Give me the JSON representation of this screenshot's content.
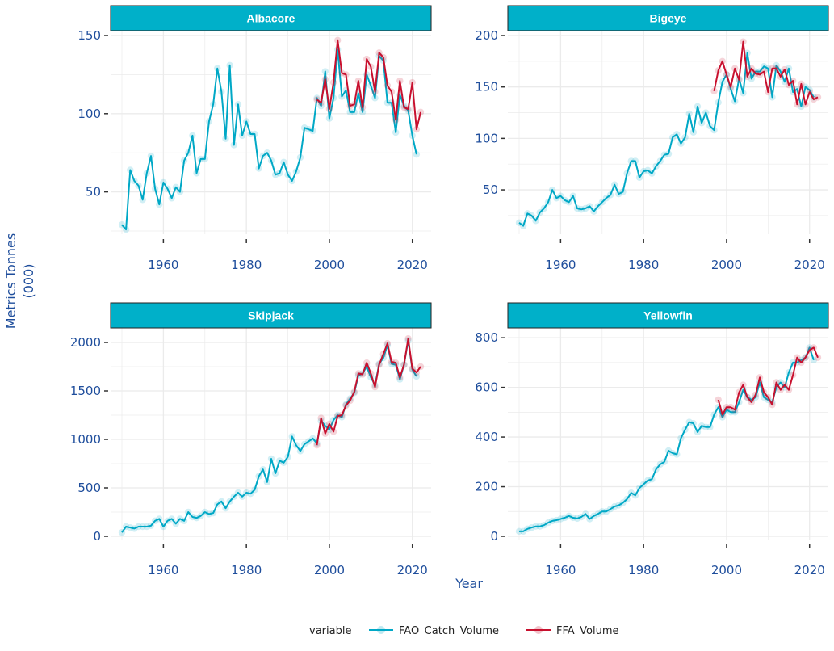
{
  "colors": {
    "strip": "#00b0c9",
    "fao": "#00a8c6",
    "ffa": "#c8102e",
    "tick": "#1f4e9c",
    "grid": "#ebebeb"
  },
  "axis_titles": {
    "y_line1": "Metrics Tonnes",
    "y_line2": "(000)",
    "x": "Year"
  },
  "legend": {
    "title": "variable",
    "items": [
      "FAO_Catch_Volume",
      "FFA_Volume"
    ]
  },
  "chart_data": [
    {
      "type": "line",
      "title": "Albacore",
      "xlabel": "Year",
      "ylabel": "Metrics Tonnes (000)",
      "xlim": [
        1950,
        2022
      ],
      "ylim": [
        25,
        150
      ],
      "x_ticks": [
        1960,
        1980,
        2000,
        2020
      ],
      "y_ticks": [
        50,
        100,
        150
      ],
      "series": [
        {
          "name": "FAO_Catch_Volume",
          "x": [
            1950,
            1951,
            1952,
            1953,
            1954,
            1955,
            1956,
            1957,
            1958,
            1959,
            1960,
            1961,
            1962,
            1963,
            1964,
            1965,
            1966,
            1967,
            1968,
            1969,
            1970,
            1971,
            1972,
            1973,
            1974,
            1975,
            1976,
            1977,
            1978,
            1979,
            1980,
            1981,
            1982,
            1983,
            1984,
            1985,
            1986,
            1987,
            1988,
            1989,
            1990,
            1991,
            1992,
            1993,
            1994,
            1995,
            1996,
            1997,
            1998,
            1999,
            2000,
            2001,
            2002,
            2003,
            2004,
            2005,
            2006,
            2007,
            2008,
            2009,
            2010,
            2011,
            2012,
            2013,
            2014,
            2015,
            2016,
            2017,
            2018,
            2019,
            2020,
            2021
          ],
          "values": [
            29,
            26,
            64,
            57,
            54,
            45,
            62,
            73,
            52,
            42,
            56,
            52,
            46,
            53,
            50,
            70,
            75,
            86,
            62,
            71,
            71,
            95,
            106,
            129,
            114,
            84,
            131,
            80,
            106,
            86,
            95,
            87,
            87,
            65,
            73,
            75,
            70,
            61,
            62,
            69,
            61,
            57,
            63,
            72,
            91,
            90,
            89,
            110,
            105,
            127,
            97,
            110,
            141,
            111,
            115,
            101,
            101,
            113,
            101,
            125,
            118,
            110,
            137,
            134,
            107,
            107,
            88,
            112,
            105,
            102,
            86,
            74
          ]
        },
        {
          "name": "FFA_Volume",
          "x": [
            1997,
            1998,
            1999,
            2000,
            2001,
            2002,
            2003,
            2004,
            2005,
            2006,
            2007,
            2008,
            2009,
            2010,
            2011,
            2012,
            2013,
            2014,
            2015,
            2016,
            2017,
            2018,
            2019,
            2020,
            2021,
            2022
          ],
          "values": [
            109,
            107,
            122,
            103,
            120,
            147,
            126,
            125,
            105,
            106,
            121,
            104,
            135,
            130,
            114,
            139,
            136,
            118,
            114,
            96,
            121,
            104,
            103,
            120,
            90,
            101
          ]
        }
      ]
    },
    {
      "type": "line",
      "title": "Bigeye",
      "xlabel": "Year",
      "ylabel": "Metrics Tonnes (000)",
      "xlim": [
        1950,
        2022
      ],
      "ylim": [
        10,
        200
      ],
      "x_ticks": [
        1960,
        1980,
        2000,
        2020
      ],
      "y_ticks": [
        50,
        100,
        150,
        200
      ],
      "series": [
        {
          "name": "FAO_Catch_Volume",
          "x": [
            1950,
            1951,
            1952,
            1953,
            1954,
            1955,
            1956,
            1957,
            1958,
            1959,
            1960,
            1961,
            1962,
            1963,
            1964,
            1965,
            1966,
            1967,
            1968,
            1969,
            1970,
            1971,
            1972,
            1973,
            1974,
            1975,
            1976,
            1977,
            1978,
            1979,
            1980,
            1981,
            1982,
            1983,
            1984,
            1985,
            1986,
            1987,
            1988,
            1989,
            1990,
            1991,
            1992,
            1993,
            1994,
            1995,
            1996,
            1997,
            1998,
            1999,
            2000,
            2001,
            2002,
            2003,
            2004,
            2005,
            2006,
            2007,
            2008,
            2009,
            2010,
            2011,
            2012,
            2013,
            2014,
            2015,
            2016,
            2017,
            2018,
            2019,
            2020,
            2021
          ],
          "values": [
            18,
            15,
            27,
            25,
            20,
            28,
            32,
            38,
            50,
            42,
            44,
            40,
            38,
            44,
            32,
            31,
            32,
            34,
            29,
            34,
            38,
            42,
            45,
            55,
            46,
            48,
            66,
            78,
            78,
            62,
            68,
            69,
            66,
            73,
            78,
            84,
            85,
            101,
            104,
            95,
            101,
            124,
            106,
            131,
            115,
            125,
            112,
            108,
            135,
            155,
            162,
            148,
            136,
            158,
            144,
            183,
            158,
            165,
            165,
            170,
            168,
            140,
            171,
            165,
            155,
            168,
            145,
            148,
            131,
            150,
            147,
            140
          ]
        },
        {
          "name": "FFA_Volume",
          "x": [
            1997,
            1998,
            1999,
            2000,
            2001,
            2002,
            2003,
            2004,
            2005,
            2006,
            2007,
            2008,
            2009,
            2010,
            2011,
            2012,
            2013,
            2014,
            2015,
            2016,
            2017,
            2018,
            2019,
            2020,
            2021,
            2022
          ],
          "values": [
            146,
            166,
            175,
            162,
            150,
            168,
            157,
            194,
            160,
            168,
            163,
            162,
            165,
            145,
            168,
            168,
            160,
            167,
            152,
            156,
            133,
            153,
            133,
            145,
            138,
            140
          ]
        }
      ]
    },
    {
      "type": "line",
      "title": "Skipjack",
      "xlabel": "Year",
      "ylabel": "Metrics Tonnes (000)",
      "xlim": [
        1950,
        2022
      ],
      "ylim": [
        0,
        2100
      ],
      "x_ticks": [
        1960,
        1980,
        2000,
        2020
      ],
      "y_ticks": [
        0,
        500,
        1000,
        1500,
        2000
      ],
      "series": [
        {
          "name": "FAO_Catch_Volume",
          "x": [
            1950,
            1951,
            1952,
            1953,
            1954,
            1955,
            1956,
            1957,
            1958,
            1959,
            1960,
            1961,
            1962,
            1963,
            1964,
            1965,
            1966,
            1967,
            1968,
            1969,
            1970,
            1971,
            1972,
            1973,
            1974,
            1975,
            1976,
            1977,
            1978,
            1979,
            1980,
            1981,
            1982,
            1983,
            1984,
            1985,
            1986,
            1987,
            1988,
            1989,
            1990,
            1991,
            1992,
            1993,
            1994,
            1995,
            1996,
            1997,
            1998,
            1999,
            2000,
            2001,
            2002,
            2003,
            2004,
            2005,
            2006,
            2007,
            2008,
            2009,
            2010,
            2011,
            2012,
            2013,
            2014,
            2015,
            2016,
            2017,
            2018,
            2019,
            2020,
            2021
          ],
          "values": [
            40,
            100,
            90,
            80,
            100,
            100,
            100,
            110,
            160,
            180,
            100,
            160,
            180,
            130,
            180,
            160,
            250,
            200,
            190,
            210,
            250,
            230,
            240,
            330,
            360,
            290,
            360,
            410,
            450,
            410,
            450,
            440,
            480,
            620,
            690,
            560,
            800,
            650,
            780,
            760,
            820,
            1030,
            940,
            880,
            950,
            980,
            1010,
            960,
            1190,
            1140,
            1100,
            1200,
            1250,
            1230,
            1360,
            1420,
            1480,
            1660,
            1680,
            1750,
            1640,
            1560,
            1780,
            1840,
            1970,
            1780,
            1770,
            1620,
            1770,
            2020,
            1720,
            1650
          ]
        },
        {
          "name": "FFA_Volume",
          "x": [
            1997,
            1998,
            1999,
            2000,
            2001,
            2002,
            2003,
            2004,
            2005,
            2006,
            2007,
            2008,
            2009,
            2010,
            2011,
            2012,
            2013,
            2014,
            2015,
            2016,
            2017,
            2018,
            2019,
            2020,
            2021,
            2022
          ],
          "values": [
            940,
            1220,
            1060,
            1160,
            1080,
            1240,
            1250,
            1350,
            1400,
            1490,
            1680,
            1670,
            1790,
            1680,
            1540,
            1770,
            1880,
            1990,
            1800,
            1790,
            1640,
            1770,
            2040,
            1730,
            1690,
            1750
          ]
        }
      ]
    },
    {
      "type": "line",
      "title": "Yellowfin",
      "xlabel": "Year",
      "ylabel": "Metrics Tonnes (000)",
      "xlim": [
        1950,
        2022
      ],
      "ylim": [
        0,
        820
      ],
      "x_ticks": [
        1960,
        1980,
        2000,
        2020
      ],
      "y_ticks": [
        0,
        200,
        400,
        600,
        800
      ],
      "series": [
        {
          "name": "FAO_Catch_Volume",
          "x": [
            1950,
            1951,
            1952,
            1953,
            1954,
            1955,
            1956,
            1957,
            1958,
            1959,
            1960,
            1961,
            1962,
            1963,
            1964,
            1965,
            1966,
            1967,
            1968,
            1969,
            1970,
            1971,
            1972,
            1973,
            1974,
            1975,
            1976,
            1977,
            1978,
            1979,
            1980,
            1981,
            1982,
            1983,
            1984,
            1985,
            1986,
            1987,
            1988,
            1989,
            1990,
            1991,
            1992,
            1993,
            1994,
            1995,
            1996,
            1997,
            1998,
            1999,
            2000,
            2001,
            2002,
            2003,
            2004,
            2005,
            2006,
            2007,
            2008,
            2009,
            2010,
            2011,
            2012,
            2013,
            2014,
            2015,
            2016,
            2017,
            2018,
            2019,
            2020,
            2021
          ],
          "values": [
            20,
            20,
            30,
            35,
            40,
            40,
            45,
            55,
            62,
            65,
            70,
            75,
            82,
            75,
            72,
            78,
            90,
            70,
            82,
            90,
            100,
            100,
            110,
            120,
            125,
            135,
            150,
            175,
            165,
            195,
            210,
            225,
            230,
            270,
            290,
            300,
            345,
            335,
            330,
            395,
            430,
            460,
            455,
            420,
            445,
            440,
            440,
            490,
            520,
            480,
            510,
            500,
            500,
            540,
            590,
            560,
            550,
            560,
            620,
            560,
            550,
            540,
            600,
            620,
            600,
            660,
            700,
            700,
            710,
            720,
            760,
            710
          ]
        },
        {
          "name": "FFA_Volume",
          "x": [
            1998,
            1999,
            2000,
            2001,
            2002,
            2003,
            2004,
            2005,
            2006,
            2007,
            2008,
            2009,
            2010,
            2011,
            2012,
            2013,
            2014,
            2015,
            2016,
            2017,
            2018,
            2019,
            2020,
            2021,
            2022
          ],
          "values": [
            550,
            490,
            520,
            520,
            510,
            580,
            610,
            560,
            540,
            570,
            640,
            580,
            560,
            530,
            620,
            590,
            610,
            590,
            650,
            720,
            700,
            720,
            750,
            760,
            720
          ]
        }
      ]
    }
  ]
}
